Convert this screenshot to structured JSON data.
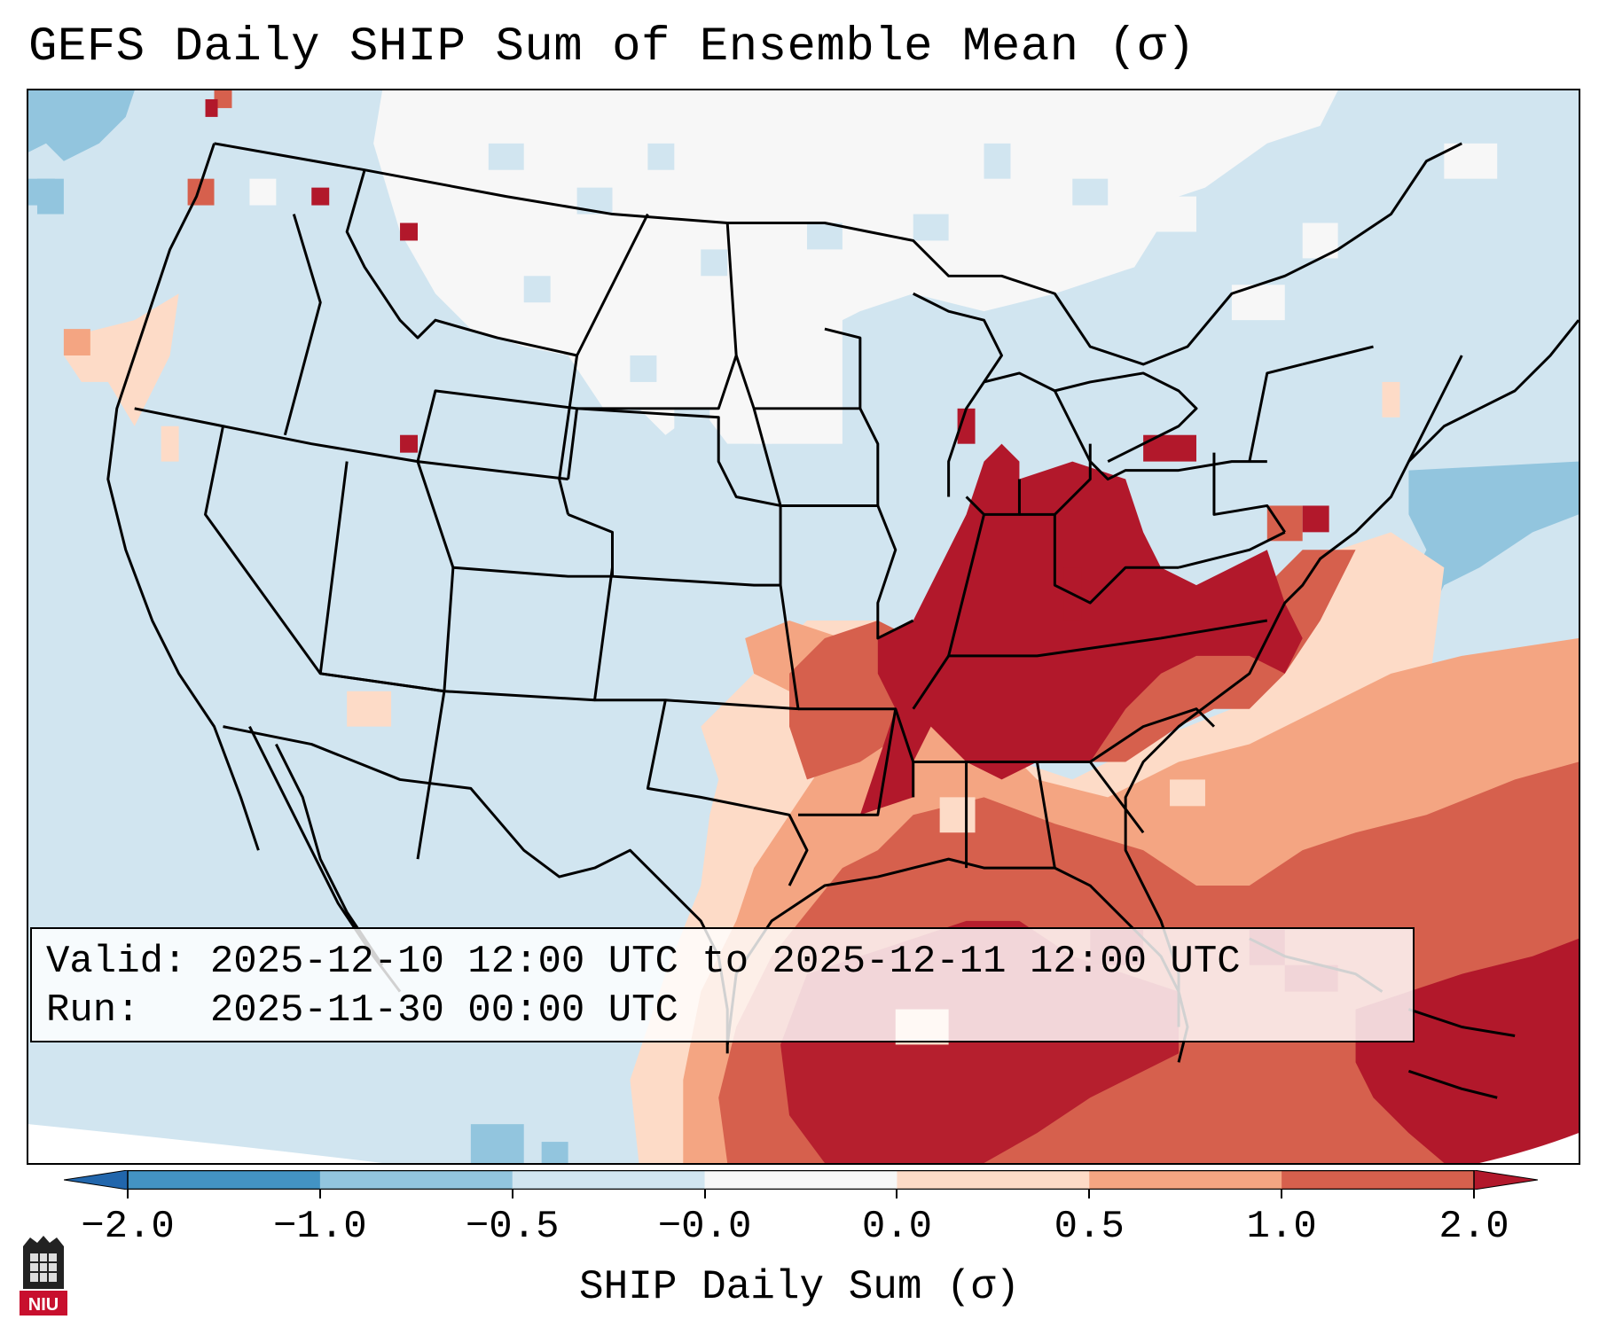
{
  "title": "GEFS Daily SHIP Sum of Ensemble Mean (σ)",
  "info": {
    "valid_label": "Valid:",
    "valid_value": "2025-12-10 12:00 UTC to 2025-12-11 12:00 UTC",
    "run_label": "Run:",
    "run_value": "2025-11-30 00:00 UTC"
  },
  "colorbar": {
    "label": "SHIP Daily Sum (σ)",
    "ticks": [
      "−2.0",
      "−1.0",
      "−0.5",
      "−0.0",
      "0.0",
      "0.5",
      "1.0",
      "2.0"
    ],
    "colors": {
      "below_min": "#2166ac",
      "bin_1": "#4393c3",
      "bin_2": "#92c5de",
      "bin_3": "#d1e5f0",
      "bin_4": "#f7f7f7",
      "bin_5": "#fddbc7",
      "bin_6": "#f4a582",
      "bin_7": "#d6604d",
      "above_max": "#b2182b"
    }
  },
  "logo": {
    "name": "niu-logo-icon",
    "text": "NIU"
  }
}
